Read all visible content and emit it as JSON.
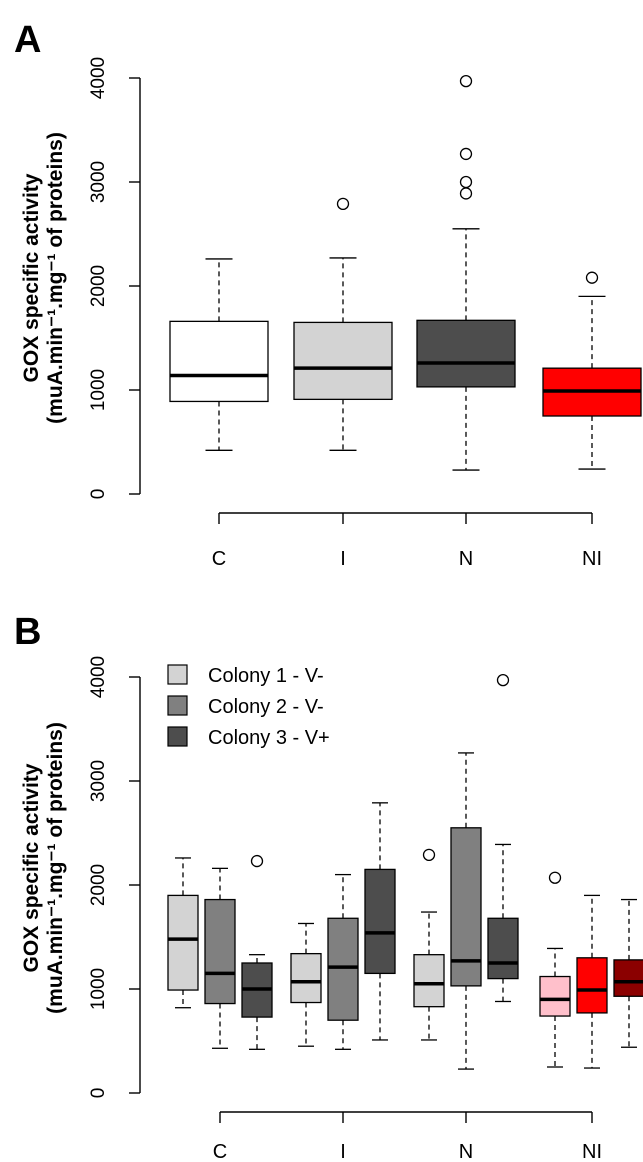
{
  "chart_data": [
    {
      "panel": "A",
      "type": "box",
      "ylabel_line1": "GOX specific activity",
      "ylabel_line2": "(muA.min⁻¹.mg⁻¹ of proteins)",
      "ylim": [
        0,
        4000
      ],
      "yticks": [
        "0",
        "1000",
        "2000",
        "3000",
        "4000"
      ],
      "categories": [
        "C",
        "I",
        "N",
        "NI"
      ],
      "boxes": [
        {
          "category": "C",
          "color": "#ffffff",
          "min": 420,
          "q1": 890,
          "median": 1140,
          "q3": 1660,
          "max": 2260,
          "outliers": []
        },
        {
          "category": "I",
          "color": "#d3d3d3",
          "min": 420,
          "q1": 910,
          "median": 1210,
          "q3": 1650,
          "max": 2270,
          "outliers": [
            2790
          ]
        },
        {
          "category": "N",
          "color": "#4d4d4d",
          "min": 230,
          "q1": 1030,
          "median": 1260,
          "q3": 1670,
          "max": 2550,
          "outliers": [
            2890,
            3000,
            3270,
            3970
          ]
        },
        {
          "category": "NI",
          "color": "#ff0000",
          "min": 240,
          "q1": 750,
          "median": 990,
          "q3": 1210,
          "max": 1900,
          "outliers": [
            2080
          ]
        }
      ]
    },
    {
      "panel": "B",
      "type": "box",
      "ylabel_line1": "GOX specific activity",
      "ylabel_line2": "(muA.min⁻¹.mg⁻¹ of proteins)",
      "ylim": [
        0,
        4000
      ],
      "yticks": [
        "0",
        "1000",
        "2000",
        "3000",
        "4000"
      ],
      "categories": [
        "C",
        "I",
        "N",
        "NI"
      ],
      "legend": [
        {
          "label": "Colony 1 - V-",
          "color": "#d3d3d3"
        },
        {
          "label": "Colony 2 - V-",
          "color": "#808080"
        },
        {
          "label": "Colony 3 - V+",
          "color": "#4d4d4d"
        }
      ],
      "boxes": [
        {
          "category": "C",
          "colony": 1,
          "color": "#d3d3d3",
          "min": 820,
          "q1": 990,
          "median": 1480,
          "q3": 1900,
          "max": 2260,
          "outliers": []
        },
        {
          "category": "C",
          "colony": 2,
          "color": "#808080",
          "min": 430,
          "q1": 860,
          "median": 1150,
          "q3": 1860,
          "max": 2160,
          "outliers": []
        },
        {
          "category": "C",
          "colony": 3,
          "color": "#4d4d4d",
          "min": 420,
          "q1": 730,
          "median": 1000,
          "q3": 1250,
          "max": 1330,
          "outliers": [
            2230
          ]
        },
        {
          "category": "I",
          "colony": 1,
          "color": "#d3d3d3",
          "min": 450,
          "q1": 870,
          "median": 1070,
          "q3": 1340,
          "max": 1630,
          "outliers": []
        },
        {
          "category": "I",
          "colony": 2,
          "color": "#808080",
          "min": 420,
          "q1": 700,
          "median": 1210,
          "q3": 1680,
          "max": 2100,
          "outliers": []
        },
        {
          "category": "I",
          "colony": 3,
          "color": "#4d4d4d",
          "min": 510,
          "q1": 1150,
          "median": 1540,
          "q3": 2150,
          "max": 2790,
          "outliers": []
        },
        {
          "category": "N",
          "colony": 1,
          "color": "#d3d3d3",
          "min": 510,
          "q1": 830,
          "median": 1050,
          "q3": 1330,
          "max": 1740,
          "outliers": [
            2290
          ]
        },
        {
          "category": "N",
          "colony": 2,
          "color": "#808080",
          "min": 230,
          "q1": 1030,
          "median": 1270,
          "q3": 2550,
          "max": 3270,
          "outliers": []
        },
        {
          "category": "N",
          "colony": 3,
          "color": "#4d4d4d",
          "min": 880,
          "q1": 1100,
          "median": 1250,
          "q3": 1680,
          "max": 2390,
          "outliers": [
            3970
          ]
        },
        {
          "category": "NI",
          "colony": 1,
          "color": "#ffc0cb",
          "min": 250,
          "q1": 740,
          "median": 900,
          "q3": 1120,
          "max": 1390,
          "outliers": [
            2070
          ]
        },
        {
          "category": "NI",
          "colony": 2,
          "color": "#ff0000",
          "min": 240,
          "q1": 770,
          "median": 990,
          "q3": 1300,
          "max": 1900,
          "outliers": []
        },
        {
          "category": "NI",
          "colony": 3,
          "color": "#8b0000",
          "min": 440,
          "q1": 930,
          "median": 1070,
          "q3": 1280,
          "max": 1860,
          "outliers": []
        }
      ]
    }
  ]
}
